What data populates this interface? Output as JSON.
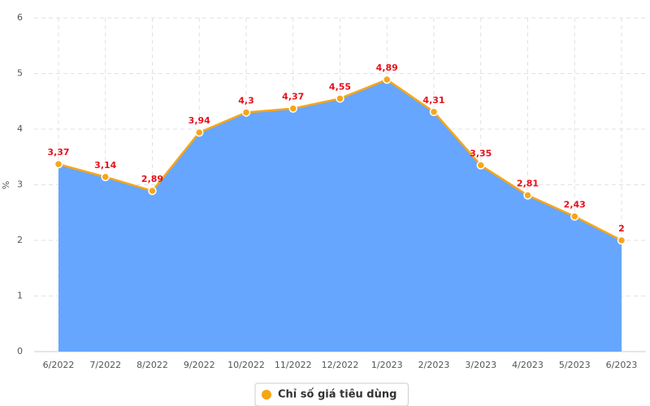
{
  "chart_data": {
    "type": "area",
    "categories": [
      "6/2022",
      "7/2022",
      "8/2022",
      "9/2022",
      "10/2022",
      "11/2022",
      "12/2022",
      "1/2023",
      "2/2023",
      "3/2023",
      "4/2023",
      "5/2023",
      "6/2023"
    ],
    "series": [
      {
        "name": "Chỉ số giá tiêu dùng",
        "color": "#f7a616",
        "area_color": "#66a6ff",
        "values": [
          3.37,
          3.14,
          2.89,
          3.94,
          4.3,
          4.37,
          4.55,
          4.89,
          4.31,
          3.35,
          2.81,
          2.43,
          2
        ],
        "value_labels": [
          "3,37",
          "3,14",
          "2,89",
          "3,94",
          "4,3",
          "4,37",
          "4,55",
          "4,89",
          "4,31",
          "3,35",
          "2,81",
          "2,43",
          "2"
        ]
      }
    ],
    "y_label": "%",
    "ylim": [
      0,
      6
    ],
    "yticks": [
      0,
      1,
      2,
      3,
      4,
      5,
      6
    ],
    "grid": true,
    "legend": "bottom"
  }
}
